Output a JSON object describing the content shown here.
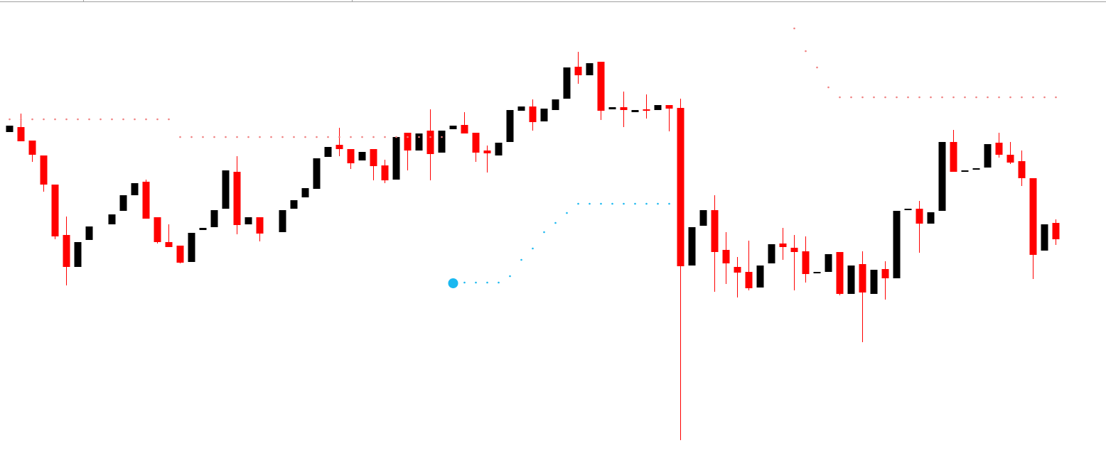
{
  "chart_data": {
    "type": "candlestick",
    "categories": [
      null,
      null,
      null,
      null,
      null,
      null,
      null,
      null,
      null,
      null,
      null,
      null,
      null,
      null,
      null,
      null,
      null,
      null,
      null,
      null,
      null,
      null,
      null,
      null,
      null,
      null,
      null,
      null,
      null,
      null,
      null,
      null,
      null,
      null,
      null,
      null,
      null,
      null,
      null,
      null,
      null,
      null,
      null,
      null,
      null,
      null,
      null,
      null,
      null,
      null,
      null,
      null,
      null,
      null,
      null,
      null,
      null,
      null,
      null,
      null,
      null,
      null,
      null,
      null,
      null,
      null,
      null,
      null,
      null,
      null,
      null,
      null,
      null,
      null,
      null,
      null,
      null,
      null,
      null,
      null,
      null,
      null,
      null,
      null,
      null,
      null,
      null,
      null,
      null,
      null,
      null,
      null,
      null
    ],
    "open": [
      469,
      476,
      457,
      436,
      395,
      324,
      279,
      317,
      null,
      339,
      358,
      380,
      399,
      349,
      314,
      309,
      286,
      331,
      335,
      361,
      413,
      339,
      349,
      null,
      328,
      361,
      377,
      389,
      434,
      451,
      445,
      429,
      445,
      422,
      402,
      468,
      443,
      471,
      440,
      473,
      479,
      468,
      443,
      436,
      455,
      499,
      505,
      484,
      500,
      516,
      561,
      549,
      568,
      501,
      504,
      497,
      501,
      500,
      507,
      503,
      281,
      337,
      359,
      303,
      279,
      272,
      250,
      284,
      312,
      306,
      301,
      270,
      272,
      300,
      241,
      283,
      241,
      276,
      263,
      359,
      361,
      340,
      358,
      455,
      414,
      416,
      419,
      454,
      437,
      428,
      404,
      302,
      341
    ],
    "high": [
      478,
      495,
      457,
      436,
      395,
      350,
      314,
      336,
      null,
      353,
      380,
      397,
      402,
      349,
      339,
      309,
      327,
      334,
      359,
      415,
      435,
      349,
      349,
      null,
      359,
      373,
      390,
      432,
      448,
      475,
      445,
      441,
      445,
      430,
      462,
      468,
      467,
      501,
      471,
      478,
      497,
      468,
      450,
      454,
      500,
      505,
      515,
      502,
      515,
      560,
      582,
      566,
      568,
      504,
      526,
      500,
      522,
      507,
      507,
      516,
      335,
      359,
      380,
      328,
      293,
      316,
      281,
      311,
      334,
      324,
      322,
      272,
      297,
      300,
      281,
      301,
      275,
      287,
      358,
      361,
      372,
      356,
      455,
      472,
      415,
      418,
      452,
      468,
      455,
      443,
      404,
      339,
      346
    ],
    "low": [
      469,
      456,
      427,
      385,
      318,
      253,
      279,
      317,
      null,
      339,
      358,
      380,
      347,
      312,
      307,
      284,
      286,
      331,
      335,
      361,
      325,
      339,
      315,
      null,
      328,
      361,
      377,
      389,
      434,
      435,
      417,
      429,
      401,
      397,
      402,
      415,
      443,
      401,
      440,
      473,
      467,
      427,
      412,
      436,
      455,
      499,
      471,
      484,
      500,
      516,
      537,
      549,
      486,
      501,
      476,
      497,
      488,
      500,
      470,
      35,
      281,
      337,
      244,
      255,
      236,
      246,
      250,
      284,
      289,
      246,
      257,
      270,
      272,
      239,
      241,
      173,
      241,
      233,
      263,
      359,
      299,
      340,
      358,
      413,
      414,
      416,
      419,
      433,
      424,
      393,
      262,
      302,
      310
    ],
    "close": [
      478,
      456,
      437,
      395,
      322,
      279,
      314,
      336,
      null,
      353,
      380,
      397,
      347,
      314,
      307,
      285,
      327,
      334,
      359,
      415,
      338,
      349,
      326,
      null,
      359,
      373,
      390,
      432,
      448,
      445,
      425,
      441,
      421,
      401,
      462,
      443,
      467,
      438,
      471,
      478,
      467,
      440,
      439,
      454,
      500,
      505,
      483,
      502,
      515,
      560,
      549,
      566,
      499,
      504,
      500,
      500,
      500,
      507,
      502,
      280,
      335,
      359,
      300,
      284,
      271,
      249,
      281,
      311,
      307,
      300,
      269,
      272,
      297,
      241,
      281,
      243,
      275,
      263,
      358,
      361,
      340,
      356,
      455,
      413,
      415,
      418,
      452,
      437,
      426,
      404,
      296,
      339,
      318
    ],
    "up_color": "#000000",
    "down_color": "#ff0000",
    "series": [
      {
        "color": "#f08080",
        "values": [
          487,
          487,
          487,
          487,
          487,
          487,
          487,
          487,
          487,
          487,
          487,
          487,
          487,
          487,
          487,
          462,
          462,
          462,
          462,
          462,
          462,
          462,
          462,
          462,
          462,
          462,
          462,
          462,
          462,
          462,
          462,
          462,
          462,
          462,
          462,
          462,
          462,
          462,
          462,
          null,
          null,
          null,
          null,
          null,
          null,
          null,
          null,
          null,
          null,
          null,
          null,
          null,
          null,
          null,
          null,
          null,
          null,
          null,
          null,
          null,
          null,
          null,
          null,
          null,
          null,
          null,
          null,
          null,
          null,
          615,
          583,
          560,
          532,
          518,
          518,
          518,
          518,
          518,
          518,
          518,
          518,
          518,
          518,
          518,
          518,
          518,
          518,
          518,
          518,
          518,
          518,
          518,
          518
        ]
      },
      {
        "color": "#1ab8f0",
        "start_marker": true,
        "values": [
          null,
          null,
          null,
          null,
          null,
          null,
          null,
          null,
          null,
          null,
          null,
          null,
          null,
          null,
          null,
          null,
          null,
          null,
          null,
          null,
          null,
          null,
          null,
          null,
          null,
          null,
          null,
          null,
          null,
          null,
          null,
          null,
          null,
          null,
          null,
          null,
          null,
          null,
          null,
          256,
          257,
          257,
          257,
          257,
          266,
          289,
          305,
          328,
          341,
          355,
          368,
          368,
          368,
          368,
          368,
          368,
          368,
          368,
          368,
          null,
          null,
          null,
          null,
          null,
          null,
          null,
          null,
          null,
          null,
          null,
          null,
          null,
          null,
          null,
          null,
          null,
          null,
          null,
          null,
          null,
          null,
          null,
          null,
          null,
          null,
          null,
          null,
          null,
          null,
          null,
          null,
          null,
          null
        ]
      }
    ],
    "ylim": [
      0,
      655
    ]
  }
}
